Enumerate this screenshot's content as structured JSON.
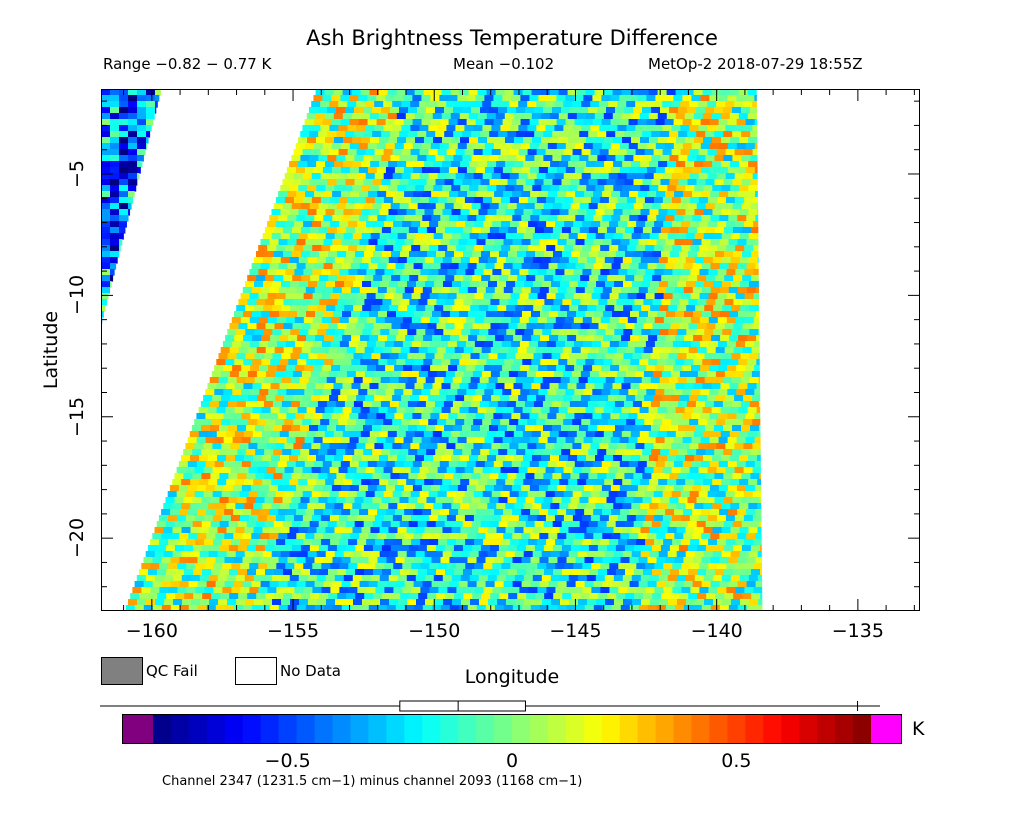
{
  "chart_data": {
    "type": "heatmap",
    "title": "Ash Brightness Temperature Difference",
    "header": {
      "range": "Range −0.82 − 0.77 K",
      "mean": "Mean −0.102",
      "satellite_time": "MetOp-2 2018-07-29 18:55Z"
    },
    "xlabel": "Longitude",
    "ylabel": "Latitude",
    "xlim": [
      -161.8,
      -132.8
    ],
    "ylim": [
      -23,
      -1.5
    ],
    "x_ticks": [
      -160,
      -155,
      -150,
      -145,
      -140,
      -135
    ],
    "x_tick_labels": [
      "−160",
      "−155",
      "−150",
      "−145",
      "−140",
      "−135"
    ],
    "y_ticks": [
      -5,
      -10,
      -15,
      -20
    ],
    "y_tick_labels": [
      "−5",
      "−10",
      "−15",
      "−20"
    ],
    "colorbar": {
      "range": [
        -0.8,
        0.8
      ],
      "ticks": [
        -0.5,
        0,
        0.5
      ],
      "tick_labels": [
        "−0.5",
        "0",
        "0.5"
      ],
      "unit": "K",
      "under_color": "#800080",
      "over_color": "#ff00ff",
      "boxplot": {
        "min": -0.8,
        "q1": -0.25,
        "median": -0.12,
        "q3": 0.03,
        "max": 0.77
      }
    },
    "legend": {
      "qc_fail": "QC Fail",
      "no_data": "No Data",
      "qc_fail_color": "#808080",
      "no_data_color": "#ffffff"
    },
    "swaths": [
      {
        "name": "main",
        "left_top": -154.2,
        "right_top": -138.6,
        "left_bottom": -161.0,
        "right_bottom": -138.4,
        "top_lat": -1.5,
        "bottom_lat": -23
      },
      {
        "name": "left-edge",
        "left_top": -161.8,
        "right_top": -159.7,
        "left_bottom": -161.8,
        "right_bottom": -161.8,
        "top_lat": -1.5,
        "bottom_lat": -11
      }
    ],
    "footnote": "Channel 2347 (1231.5 cm−1) minus channel 2093 (1168 cm−1)"
  }
}
